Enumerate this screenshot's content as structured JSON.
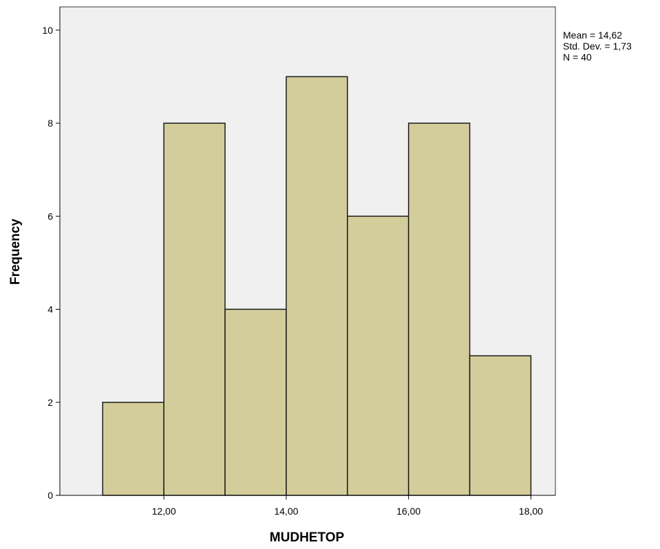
{
  "chart_data": {
    "type": "bar",
    "subtype": "histogram",
    "bins": [
      {
        "start": 11,
        "end": 12,
        "count": 2
      },
      {
        "start": 12,
        "end": 13,
        "count": 8
      },
      {
        "start": 13,
        "end": 14,
        "count": 4
      },
      {
        "start": 14,
        "end": 15,
        "count": 9
      },
      {
        "start": 15,
        "end": 16,
        "count": 6
      },
      {
        "start": 16,
        "end": 17,
        "count": 8
      },
      {
        "start": 17,
        "end": 18,
        "count": 3
      }
    ],
    "xlabel": "MUDHETOP",
    "ylabel": "Frequency",
    "xlim": [
      10.3,
      18.4
    ],
    "ylim": [
      0,
      10.5
    ],
    "x_ticks": [
      {
        "value": 12,
        "label": "12,00"
      },
      {
        "value": 14,
        "label": "14,00"
      },
      {
        "value": 16,
        "label": "16,00"
      },
      {
        "value": 18,
        "label": "18,00"
      }
    ],
    "y_ticks": [
      {
        "value": 0,
        "label": "0"
      },
      {
        "value": 2,
        "label": "2"
      },
      {
        "value": 4,
        "label": "4"
      },
      {
        "value": 6,
        "label": "6"
      },
      {
        "value": 8,
        "label": "8"
      },
      {
        "value": 10,
        "label": "10"
      }
    ],
    "stats": {
      "mean": "Mean = 14,62",
      "std_dev": "Std. Dev. = 1,73",
      "n": "N = 40"
    },
    "grid": false,
    "colors": {
      "bar_fill": "#d3cd9b",
      "bar_stroke": "#1a1a1a",
      "plot_background": "#f0f0f0",
      "axis": "#000000"
    }
  }
}
